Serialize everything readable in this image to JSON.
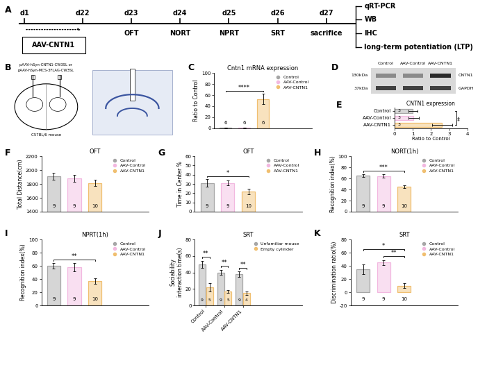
{
  "timeline": {
    "panel": "A",
    "injection": "AAV-CNTN1",
    "days": [
      {
        "day": "d1"
      },
      {
        "day": "d22"
      },
      {
        "day": "d23",
        "event": "OFT"
      },
      {
        "day": "d24",
        "event": "NORT"
      },
      {
        "day": "d25",
        "event": "NPRT"
      },
      {
        "day": "d26",
        "event": "SRT"
      },
      {
        "day": "d27",
        "event": "sacrifice"
      }
    ],
    "analyses": [
      "qRT-PCR",
      "WB",
      "IHC",
      "long-term potentiation (LTP)"
    ]
  },
  "brain": {
    "panel": "B",
    "vectors": [
      "pAAV-hSyn-CNTN1-CW3SL or",
      "pAAV-hSyn-MCS-3FLAG-CW3SL"
    ],
    "strain": "C57BL/6 mouse"
  },
  "western_blot": {
    "panel": "D",
    "lanes": [
      "Control",
      "AAV-Control",
      "AAV-CNTN1"
    ],
    "bands": [
      {
        "size": "130kDa",
        "protein": "CNTN1"
      },
      {
        "size": "37kDa",
        "protein": "GAPDH"
      }
    ]
  },
  "chart_data": [
    {
      "panel": "C",
      "type": "bar",
      "title": "Cntn1 mRNA expression",
      "y_label": "Ratio to Control",
      "categories": [
        "Control",
        "AAV-Control",
        "AAV-CNTN1"
      ],
      "values": [
        1.0,
        1.1,
        53
      ],
      "errors": [
        0.3,
        0.3,
        9
      ],
      "n": [
        6,
        6,
        6
      ],
      "colors": [
        "#a6a6a6",
        "#f2b8e0",
        "#f0bf70"
      ],
      "ylim": [
        0,
        100
      ],
      "yticks": [
        0,
        20,
        40,
        60,
        80,
        100
      ],
      "tick_labels": "y",
      "legend": "upper right",
      "significance": [
        {
          "label": "****",
          "from": "Control",
          "to": "AAV-CNTN1"
        }
      ]
    },
    {
      "panel": "E",
      "type": "bar",
      "orientation": "horizontal",
      "title": "CNTN1 expression",
      "x_label": "Ratio to Control",
      "categories": [
        "Control",
        "AAV-Control",
        "AAV-CNTN1"
      ],
      "values": [
        1.0,
        1.05,
        2.6
      ],
      "errors": [
        0.25,
        0.3,
        0.55
      ],
      "n": [
        3,
        3,
        3
      ],
      "colors": [
        "#a6a6a6",
        "#f2b8e0",
        "#f0bf70"
      ],
      "xlim": [
        0,
        4
      ],
      "xticks": [
        0,
        1,
        2,
        3,
        4
      ],
      "significance": [
        {
          "label": "**",
          "from": "Control",
          "to": "AAV-CNTN1"
        }
      ]
    },
    {
      "panel": "F",
      "type": "bar",
      "title": "OFT",
      "y_label": "Total Distance(cm)",
      "categories": [
        "Control",
        "AAV-Control",
        "AAV-CNTN1"
      ],
      "values": [
        1910,
        1880,
        1815
      ],
      "errors": [
        50,
        50,
        45
      ],
      "n": [
        9,
        9,
        10
      ],
      "colors": [
        "#a6a6a6",
        "#f2b8e0",
        "#f0bf70"
      ],
      "ylim": [
        1400,
        2200
      ],
      "yticks": [
        1400,
        1600,
        1800,
        2000,
        2200
      ],
      "tick_labels": "y",
      "legend": "upper right",
      "significance": []
    },
    {
      "panel": "G",
      "type": "bar",
      "title": "OFT",
      "y_label": "Time in Center %",
      "categories": [
        "Control",
        "AAV-Control",
        "AAV-CNTN1"
      ],
      "values": [
        31,
        31,
        22
      ],
      "errors": [
        4,
        2.5,
        3
      ],
      "n": [
        9,
        9,
        10
      ],
      "colors": [
        "#a6a6a6",
        "#f2b8e0",
        "#f0bf70"
      ],
      "ylim": [
        0,
        60
      ],
      "yticks": [
        0,
        10,
        20,
        30,
        40,
        50,
        60
      ],
      "tick_labels": "y",
      "legend": "upper right",
      "significance": [
        {
          "label": "*",
          "from": "Control",
          "to": "AAV-CNTN1"
        }
      ]
    },
    {
      "panel": "H",
      "type": "bar",
      "title": "NORT(1h)",
      "y_label": "Recognition index(%)",
      "categories": [
        "Control",
        "AAV-Control",
        "AAV-CNTN1"
      ],
      "values": [
        65,
        64,
        45
      ],
      "errors": [
        2.5,
        3,
        3
      ],
      "n": [
        9,
        9,
        10
      ],
      "colors": [
        "#a6a6a6",
        "#f2b8e0",
        "#f0bf70"
      ],
      "ylim": [
        0,
        100
      ],
      "yticks": [
        0,
        20,
        40,
        60,
        80,
        100
      ],
      "tick_labels": "y",
      "legend": "upper right",
      "significance": [
        {
          "label": "***",
          "from": "Control",
          "to": "AAV-CNTN1"
        }
      ]
    },
    {
      "panel": "I",
      "type": "bar",
      "title": "NPRT(1h)",
      "y_label": "Recognition index(%)",
      "categories": [
        "Control",
        "AAV-Control",
        "AAV-CNTN1"
      ],
      "values": [
        60,
        58,
        37
      ],
      "errors": [
        4,
        6,
        4
      ],
      "n": [
        9,
        9,
        10
      ],
      "colors": [
        "#a6a6a6",
        "#f2b8e0",
        "#f0bf70"
      ],
      "ylim": [
        0,
        100
      ],
      "yticks": [
        0,
        20,
        40,
        60,
        80,
        100
      ],
      "tick_labels": "y",
      "legend": "upper right",
      "significance": [
        {
          "label": "**",
          "from": "Control",
          "to": "AAV-CNTN1"
        }
      ]
    },
    {
      "panel": "J",
      "type": "bar",
      "title": "SRT",
      "y_label": "Sociability\ninteraction time(s)",
      "categories": [
        "Control",
        "AAV-Control",
        "AAV-CNTN1"
      ],
      "series": [
        {
          "name": "Unfamiliar mouse",
          "color": "#a6a6a6",
          "values": [
            50,
            40,
            38
          ],
          "errors": [
            4,
            3,
            3
          ],
          "n": [
            9,
            9,
            9
          ]
        },
        {
          "name": "Empty cylinder",
          "color": "#f0bf70",
          "values": [
            22,
            17,
            15
          ],
          "errors": [
            5,
            2,
            2
          ],
          "n": [
            5,
            5,
            4
          ]
        }
      ],
      "ylim": [
        0,
        80
      ],
      "yticks": [
        0,
        20,
        40,
        60,
        80
      ],
      "legend": "upper right",
      "significance": [
        {
          "label": "**",
          "category": "Control"
        },
        {
          "label": "**",
          "category": "AAV-Control"
        },
        {
          "label": "**",
          "category": "AAV-CNTN1"
        }
      ]
    },
    {
      "panel": "K",
      "type": "bar",
      "title": "SRT",
      "y_label": "Discrimination ratio(%)",
      "categories": [
        "Control",
        "AAV-Control",
        "AAV-CNTN1"
      ],
      "values": [
        35,
        45,
        10
      ],
      "errors": [
        7,
        4,
        4
      ],
      "n": [
        9,
        9,
        10
      ],
      "colors": [
        "#a6a6a6",
        "#f2b8e0",
        "#f0bf70"
      ],
      "ylim": [
        -20,
        80
      ],
      "yticks": [
        -20,
        0,
        20,
        40,
        60,
        80
      ],
      "tick_labels": "y",
      "legend": "upper right",
      "significance": [
        {
          "label": "**",
          "from": "AAV-Control",
          "to": "AAV-CNTN1"
        },
        {
          "label": "*",
          "from": "Control",
          "to": "AAV-CNTN1"
        }
      ]
    }
  ]
}
